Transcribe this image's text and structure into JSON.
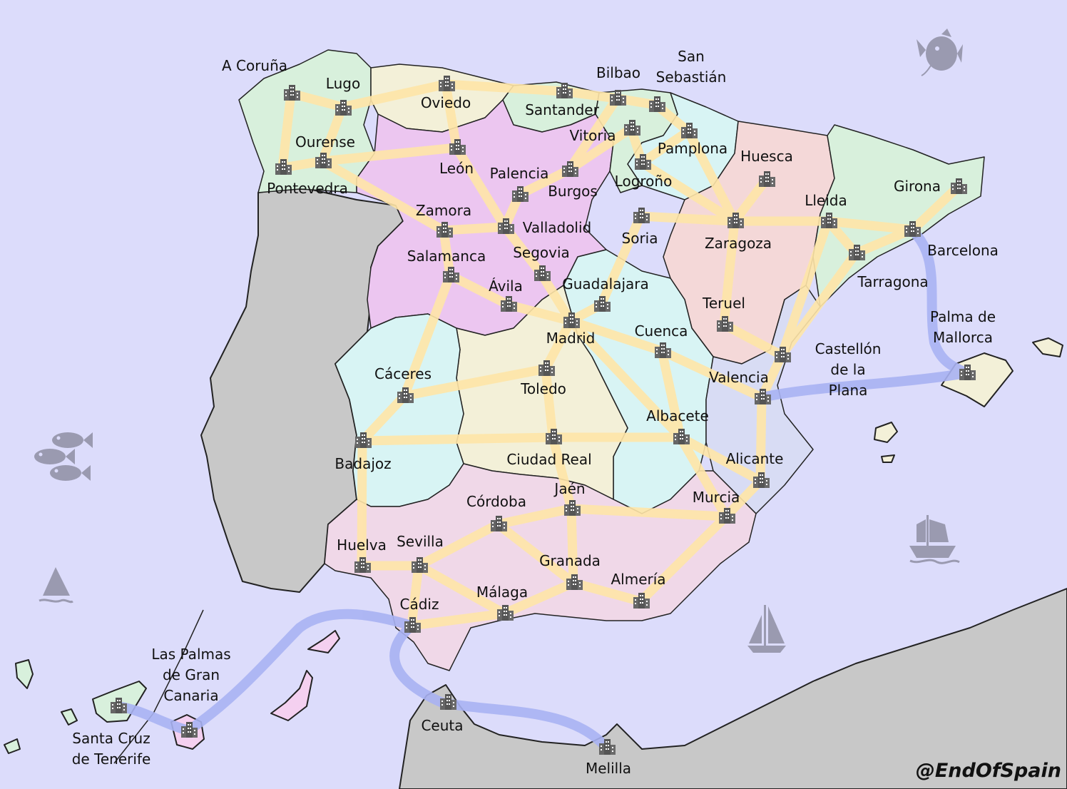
{
  "map": {
    "credit": "@EndOfSpain",
    "colors": {
      "sea": "#dcdcfb",
      "foreign_land": "#c8c8c8",
      "region_pink": "#f0d8e8",
      "region_mauve": "#ecc6f0",
      "region_green": "#d8f0dc",
      "region_cyan": "#d8f4f4",
      "region_cream": "#f3f0d8",
      "region_salmon": "#f4d8d8",
      "region_blue": "#d8dcf4",
      "road_route": "#ffe6a8",
      "sea_route": "#a9b2f3",
      "city_icon": "#666666",
      "decoration": "#9a9ab0"
    },
    "decorations": [
      "fish-icon",
      "fish-school-icon",
      "shark-fin-icon",
      "sailing-ship-icon",
      "sailboat-icon"
    ],
    "city_icon": "building-icon",
    "cities": [
      {
        "label": "A Coruña"
      },
      {
        "label": "Lugo"
      },
      {
        "label": "Oviedo"
      },
      {
        "label": "Santander"
      },
      {
        "label": "Bilbao"
      },
      {
        "label": "San Sebastián"
      },
      {
        "label": "Vitoria"
      },
      {
        "label": "Pamplona"
      },
      {
        "label": "Huesca"
      },
      {
        "label": "Ourense"
      },
      {
        "label": "Pontevedra"
      },
      {
        "label": "León"
      },
      {
        "label": "Palencia"
      },
      {
        "label": "Burgos"
      },
      {
        "label": "Logroño"
      },
      {
        "label": "Zamora"
      },
      {
        "label": "Valladolid"
      },
      {
        "label": "Soria"
      },
      {
        "label": "Zaragoza"
      },
      {
        "label": "Lleida"
      },
      {
        "label": "Girona"
      },
      {
        "label": "Barcelona"
      },
      {
        "label": "Tarragona"
      },
      {
        "label": "Salamanca"
      },
      {
        "label": "Segovia"
      },
      {
        "label": "Ávila"
      },
      {
        "label": "Guadalajara"
      },
      {
        "label": "Madrid"
      },
      {
        "label": "Teruel"
      },
      {
        "label": "Cuenca"
      },
      {
        "label": "Castellón de la Plana"
      },
      {
        "label": "Palma de Mallorca"
      },
      {
        "label": "Valencia"
      },
      {
        "label": "Cáceres"
      },
      {
        "label": "Toledo"
      },
      {
        "label": "Albacete"
      },
      {
        "label": "Badajoz"
      },
      {
        "label": "Ciudad Real"
      },
      {
        "label": "Alicante"
      },
      {
        "label": "Jaén"
      },
      {
        "label": "Córdoba"
      },
      {
        "label": "Murcia"
      },
      {
        "label": "Huelva"
      },
      {
        "label": "Sevilla"
      },
      {
        "label": "Granada"
      },
      {
        "label": "Almería"
      },
      {
        "label": "Málaga"
      },
      {
        "label": "Cádiz"
      },
      {
        "label": "Ceuta"
      },
      {
        "label": "Melilla"
      },
      {
        "label": "Las Palmas de Gran Canaria"
      },
      {
        "label": "Santa Cruz de Tenerife"
      }
    ]
  }
}
